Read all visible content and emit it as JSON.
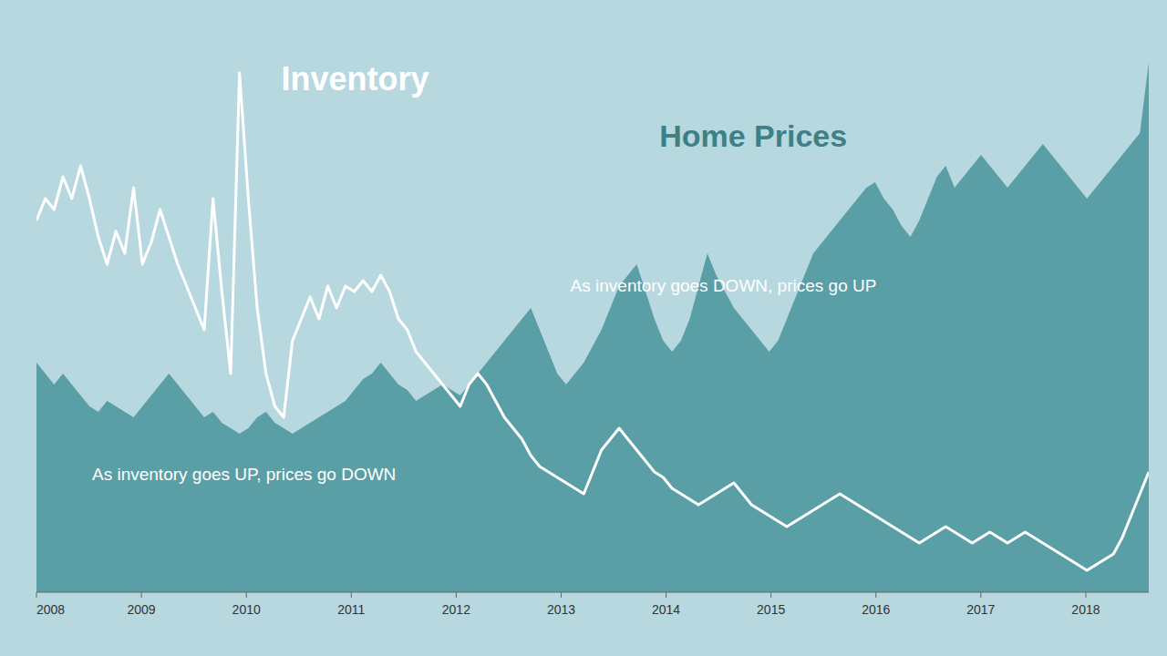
{
  "chart_data": {
    "type": "line",
    "x": [
      2008,
      2008.0841,
      2008.1683,
      2008.2524,
      2008.3365,
      2008.4206,
      2008.5048,
      2008.5889,
      2008.673,
      2008.7571,
      2008.8413,
      2008.9254,
      2009.0095,
      2009.0937,
      2009.1778,
      2009.2619,
      2009.346,
      2009.4302,
      2009.5143,
      2009.5984,
      2009.6825,
      2009.7667,
      2009.8508,
      2009.9349,
      2010.019,
      2010.1032,
      2010.1873,
      2010.2714,
      2010.3556,
      2010.4397,
      2010.5238,
      2010.6079,
      2010.6921,
      2010.7762,
      2010.8603,
      2010.9444,
      2011.0286,
      2011.1127,
      2011.1968,
      2011.281,
      2011.3651,
      2011.4492,
      2011.5333,
      2011.6175,
      2011.7016,
      2011.7857,
      2011.8698,
      2011.954,
      2012.0381,
      2012.1222,
      2012.2063,
      2012.2905,
      2012.3746,
      2012.4587,
      2012.5429,
      2012.627,
      2012.7111,
      2012.7952,
      2012.8794,
      2012.9635,
      2013.0476,
      2013.1317,
      2013.2159,
      2013.3,
      2013.3841,
      2013.4683,
      2013.5524,
      2013.6365,
      2013.7206,
      2013.8048,
      2013.8889,
      2013.973,
      2014.0571,
      2014.1413,
      2014.2254,
      2014.3095,
      2014.3937,
      2014.4778,
      2014.5619,
      2014.646,
      2014.7302,
      2014.8143,
      2014.8984,
      2014.9825,
      2015.0667,
      2015.1508,
      2015.2349,
      2015.319,
      2015.4032,
      2015.4873,
      2015.5714,
      2015.6556,
      2015.7397,
      2015.8238,
      2015.9079,
      2015.9921,
      2016.0762,
      2016.1603,
      2016.2444,
      2016.3286,
      2016.4127,
      2016.4968,
      2016.581,
      2016.6651,
      2016.7492,
      2016.8333,
      2016.9175,
      2017.0016,
      2017.0857,
      2017.1698,
      2017.254,
      2017.3381,
      2017.4222,
      2017.5063,
      2017.5905,
      2017.6746,
      2017.7587,
      2017.8429,
      2017.927,
      2018.0111,
      2018.0952,
      2018.1794,
      2018.2635,
      2018.3476,
      2018.4317,
      2018.5159,
      2018.6
    ],
    "series": [
      {
        "name": "Inventory",
        "type": "line",
        "color": "#ffffff",
        "values": [
          0.68,
          0.72,
          0.7,
          0.76,
          0.72,
          0.78,
          0.72,
          0.65,
          0.6,
          0.66,
          0.62,
          0.74,
          0.6,
          0.64,
          0.7,
          0.65,
          0.6,
          0.56,
          0.52,
          0.48,
          0.72,
          0.55,
          0.4,
          0.95,
          0.72,
          0.52,
          0.4,
          0.34,
          0.32,
          0.46,
          0.5,
          0.54,
          0.5,
          0.56,
          0.52,
          0.56,
          0.55,
          0.57,
          0.55,
          0.58,
          0.55,
          0.5,
          0.48,
          0.44,
          0.42,
          0.4,
          0.38,
          0.36,
          0.34,
          0.38,
          0.4,
          0.38,
          0.35,
          0.32,
          0.3,
          0.28,
          0.25,
          0.23,
          0.22,
          0.21,
          0.2,
          0.19,
          0.18,
          0.22,
          0.26,
          0.28,
          0.3,
          0.28,
          0.26,
          0.24,
          0.22,
          0.21,
          0.19,
          0.18,
          0.17,
          0.16,
          0.17,
          0.18,
          0.19,
          0.2,
          0.18,
          0.16,
          0.15,
          0.14,
          0.13,
          0.12,
          0.13,
          0.14,
          0.15,
          0.16,
          0.17,
          0.18,
          0.17,
          0.16,
          0.15,
          0.14,
          0.13,
          0.12,
          0.11,
          0.1,
          0.09,
          0.1,
          0.11,
          0.12,
          0.11,
          0.1,
          0.09,
          0.1,
          0.11,
          0.1,
          0.09,
          0.1,
          0.11,
          0.1,
          0.09,
          0.08,
          0.07,
          0.06,
          0.05,
          0.04,
          0.05,
          0.06,
          0.07,
          0.1,
          0.14,
          0.18,
          0.22
        ]
      },
      {
        "name": "Home Prices",
        "type": "area",
        "color": "#5a9ea6",
        "values": [
          0.42,
          0.4,
          0.38,
          0.4,
          0.38,
          0.36,
          0.34,
          0.33,
          0.35,
          0.34,
          0.33,
          0.32,
          0.34,
          0.36,
          0.38,
          0.4,
          0.38,
          0.36,
          0.34,
          0.32,
          0.33,
          0.31,
          0.3,
          0.29,
          0.3,
          0.32,
          0.33,
          0.31,
          0.3,
          0.29,
          0.3,
          0.31,
          0.32,
          0.33,
          0.34,
          0.35,
          0.37,
          0.39,
          0.4,
          0.42,
          0.4,
          0.38,
          0.37,
          0.35,
          0.36,
          0.37,
          0.38,
          0.37,
          0.36,
          0.38,
          0.4,
          0.42,
          0.44,
          0.46,
          0.48,
          0.5,
          0.52,
          0.48,
          0.44,
          0.4,
          0.38,
          0.4,
          0.42,
          0.45,
          0.48,
          0.52,
          0.56,
          0.58,
          0.6,
          0.55,
          0.5,
          0.46,
          0.44,
          0.46,
          0.5,
          0.56,
          0.62,
          0.58,
          0.55,
          0.52,
          0.5,
          0.48,
          0.46,
          0.44,
          0.46,
          0.5,
          0.54,
          0.58,
          0.62,
          0.64,
          0.66,
          0.68,
          0.7,
          0.72,
          0.74,
          0.75,
          0.72,
          0.7,
          0.67,
          0.65,
          0.68,
          0.72,
          0.76,
          0.78,
          0.74,
          0.76,
          0.78,
          0.8,
          0.78,
          0.76,
          0.74,
          0.76,
          0.78,
          0.8,
          0.82,
          0.8,
          0.78,
          0.76,
          0.74,
          0.72,
          0.74,
          0.76,
          0.78,
          0.8,
          0.82,
          0.84,
          0.97
        ]
      }
    ],
    "annotations": [
      "As inventory goes UP, prices go DOWN",
      "As inventory goes DOWN, prices go UP"
    ],
    "xlim": [
      2008.0,
      2018.6
    ],
    "xticks": [
      2008,
      2009,
      2010,
      2011,
      2012,
      2013,
      2014,
      2015,
      2016,
      2017,
      2018
    ],
    "ylim": [
      0,
      1.05
    ],
    "tick_labels": "x"
  }
}
